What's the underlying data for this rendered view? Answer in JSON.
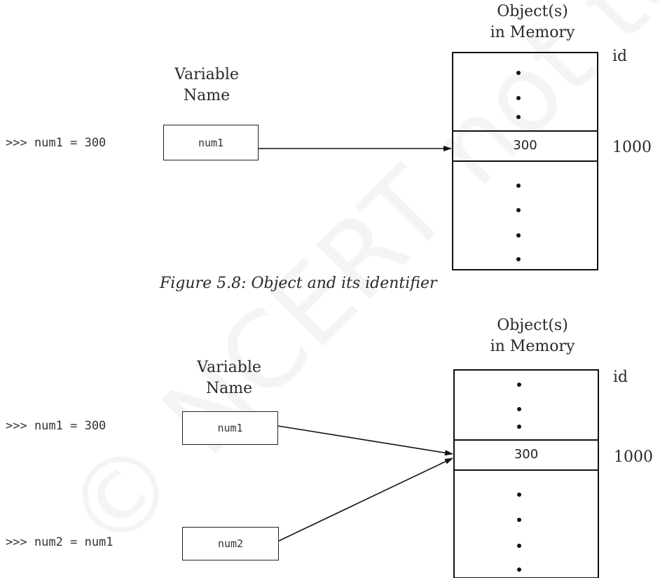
{
  "watermark": "© NCERT not to be republished",
  "figure1": {
    "code_line": ">>> num1 = 300",
    "variable_heading": "Variable Name",
    "variable_box": "num1",
    "memory_heading_line1": "Object(s)",
    "memory_heading_line2": "in Memory",
    "id_heading": "id",
    "value": "300",
    "id_value": "1000",
    "caption": "Figure 5.8:  Object and its identifier"
  },
  "figure2": {
    "code_line_1": ">>> num1 = 300",
    "code_line_2": ">>> num2 = num1",
    "variable_heading": "Variable Name",
    "variable_box_1": "num1",
    "variable_box_2": "num2",
    "memory_heading_line1": "Object(s)",
    "memory_heading_line2": "in Memory",
    "id_heading": "id",
    "value": "300",
    "id_value": "1000"
  }
}
